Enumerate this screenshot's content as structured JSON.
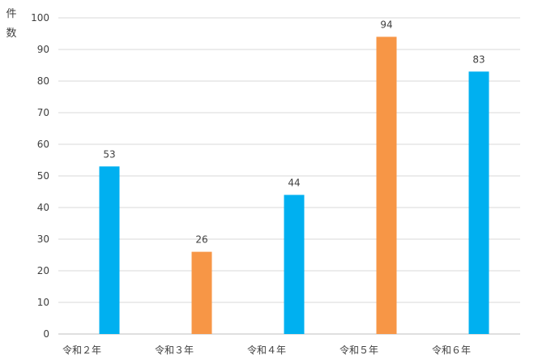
{
  "chart_data": {
    "type": "bar",
    "title": "",
    "xlabel": "",
    "ylabel": "件数",
    "categories": [
      "令和２年",
      "令和３年",
      "令和４年",
      "令和５年",
      "令和６年"
    ],
    "values": [
      53,
      26,
      44,
      94,
      83
    ],
    "data_labels": [
      "53",
      "26",
      "44",
      "94",
      "83"
    ],
    "ylim": [
      0,
      100
    ],
    "yticks": [
      0,
      10,
      20,
      30,
      40,
      50,
      60,
      70,
      80,
      90,
      100
    ],
    "grid": true,
    "legend": "none",
    "bar_colors": [
      "#00B0F0",
      "#F79646",
      "#00B0F0",
      "#F79646",
      "#00B0F0"
    ],
    "colors": {
      "blue": "#00B0F0",
      "orange": "#F79646",
      "gridline": "#D9D9D9",
      "text": "#404040"
    }
  }
}
